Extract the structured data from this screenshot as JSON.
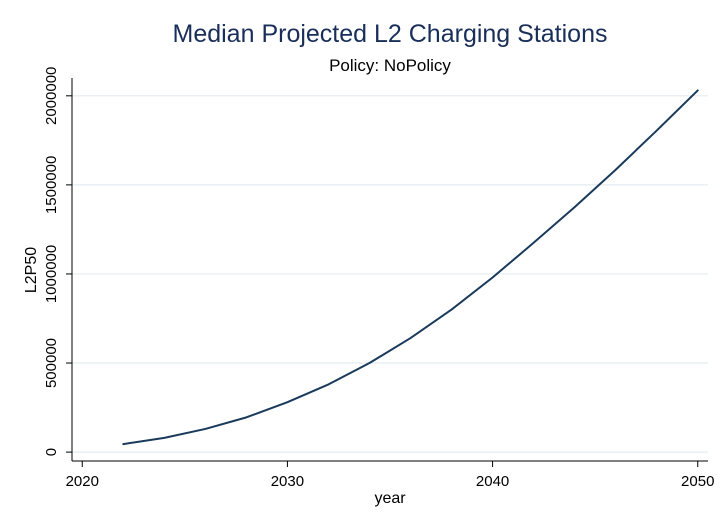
{
  "colors": {
    "title": "#1a2e5a",
    "line": "#1a3a5c",
    "grid": "#e4ecef",
    "axis": "#000000"
  },
  "chart_data": {
    "type": "line",
    "title": "Median Projected L2 Charging Stations",
    "subtitle": "Policy: NoPolicy",
    "xlabel": "year",
    "ylabel": "L2P50",
    "xlim": [
      2019.5,
      2050.5
    ],
    "ylim": [
      -50000,
      2100000
    ],
    "xticks": [
      2020,
      2030,
      2040,
      2050
    ],
    "xtick_labels": [
      "2020",
      "2030",
      "2040",
      "2050"
    ],
    "yticks": [
      0,
      500000,
      1000000,
      1500000,
      2000000
    ],
    "ytick_labels": [
      "0",
      "500000",
      "1000000",
      "1500000",
      "2000000"
    ],
    "grid": "horizontal",
    "series": [
      {
        "x": [
          2022,
          2024,
          2026,
          2028,
          2030,
          2032,
          2034,
          2036,
          2038,
          2040,
          2042,
          2044,
          2046,
          2048,
          2050
        ],
        "values": [
          45000,
          80000,
          130000,
          195000,
          280000,
          380000,
          500000,
          640000,
          800000,
          980000,
          1175000,
          1375000,
          1585000,
          1805000,
          2030000
        ]
      }
    ]
  }
}
